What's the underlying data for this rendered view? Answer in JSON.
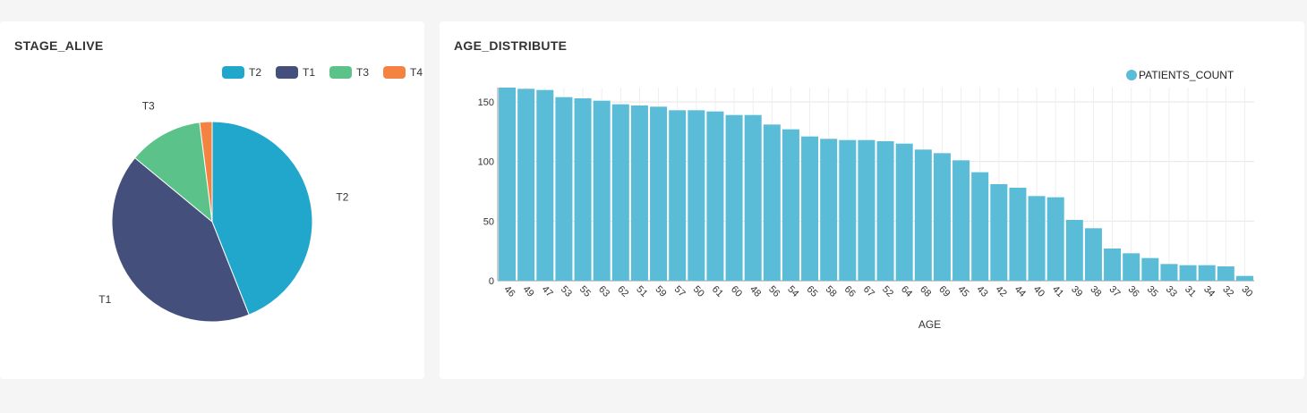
{
  "colors": {
    "background": "#f5f5f5",
    "card": "#ffffff",
    "bar": "#5bbcd7",
    "grid": "#e6e6e6"
  },
  "charts": {
    "stage_alive": {
      "title": "STAGE_ALIVE"
    },
    "age_distribute": {
      "title": "AGE_DISTRIBUTE"
    }
  },
  "chart_data": [
    {
      "type": "pie",
      "title": "STAGE_ALIVE",
      "legend_position": "top-right",
      "slices": [
        {
          "label": "T2",
          "value": 44,
          "color": "#21a7cb"
        },
        {
          "label": "T1",
          "value": 42,
          "color": "#444f7c"
        },
        {
          "label": "T3",
          "value": 12,
          "color": "#5bc38a"
        },
        {
          "label": "T4",
          "value": 2,
          "color": "#f48342"
        }
      ]
    },
    {
      "type": "bar",
      "title": "AGE_DISTRIBUTE",
      "xlabel": "AGE",
      "ylabel": "",
      "legend_position": "top-right",
      "ylim": [
        0,
        162
      ],
      "yticks": [
        0,
        50,
        100,
        150
      ],
      "grid": true,
      "categories": [
        "46",
        "49",
        "47",
        "53",
        "55",
        "63",
        "62",
        "51",
        "59",
        "57",
        "50",
        "61",
        "60",
        "48",
        "56",
        "54",
        "65",
        "58",
        "66",
        "67",
        "52",
        "64",
        "68",
        "69",
        "45",
        "43",
        "42",
        "44",
        "40",
        "41",
        "39",
        "38",
        "37",
        "36",
        "35",
        "33",
        "31",
        "34",
        "32",
        "30"
      ],
      "series": [
        {
          "name": "PATIENTS_COUNT",
          "color": "#5bbcd7",
          "values": [
            162,
            161,
            160,
            154,
            153,
            151,
            148,
            147,
            146,
            143,
            143,
            142,
            139,
            139,
            131,
            127,
            121,
            119,
            118,
            118,
            117,
            115,
            110,
            107,
            101,
            91,
            81,
            78,
            71,
            70,
            51,
            44,
            27,
            23,
            19,
            14,
            13,
            13,
            12,
            4
          ]
        }
      ]
    }
  ]
}
